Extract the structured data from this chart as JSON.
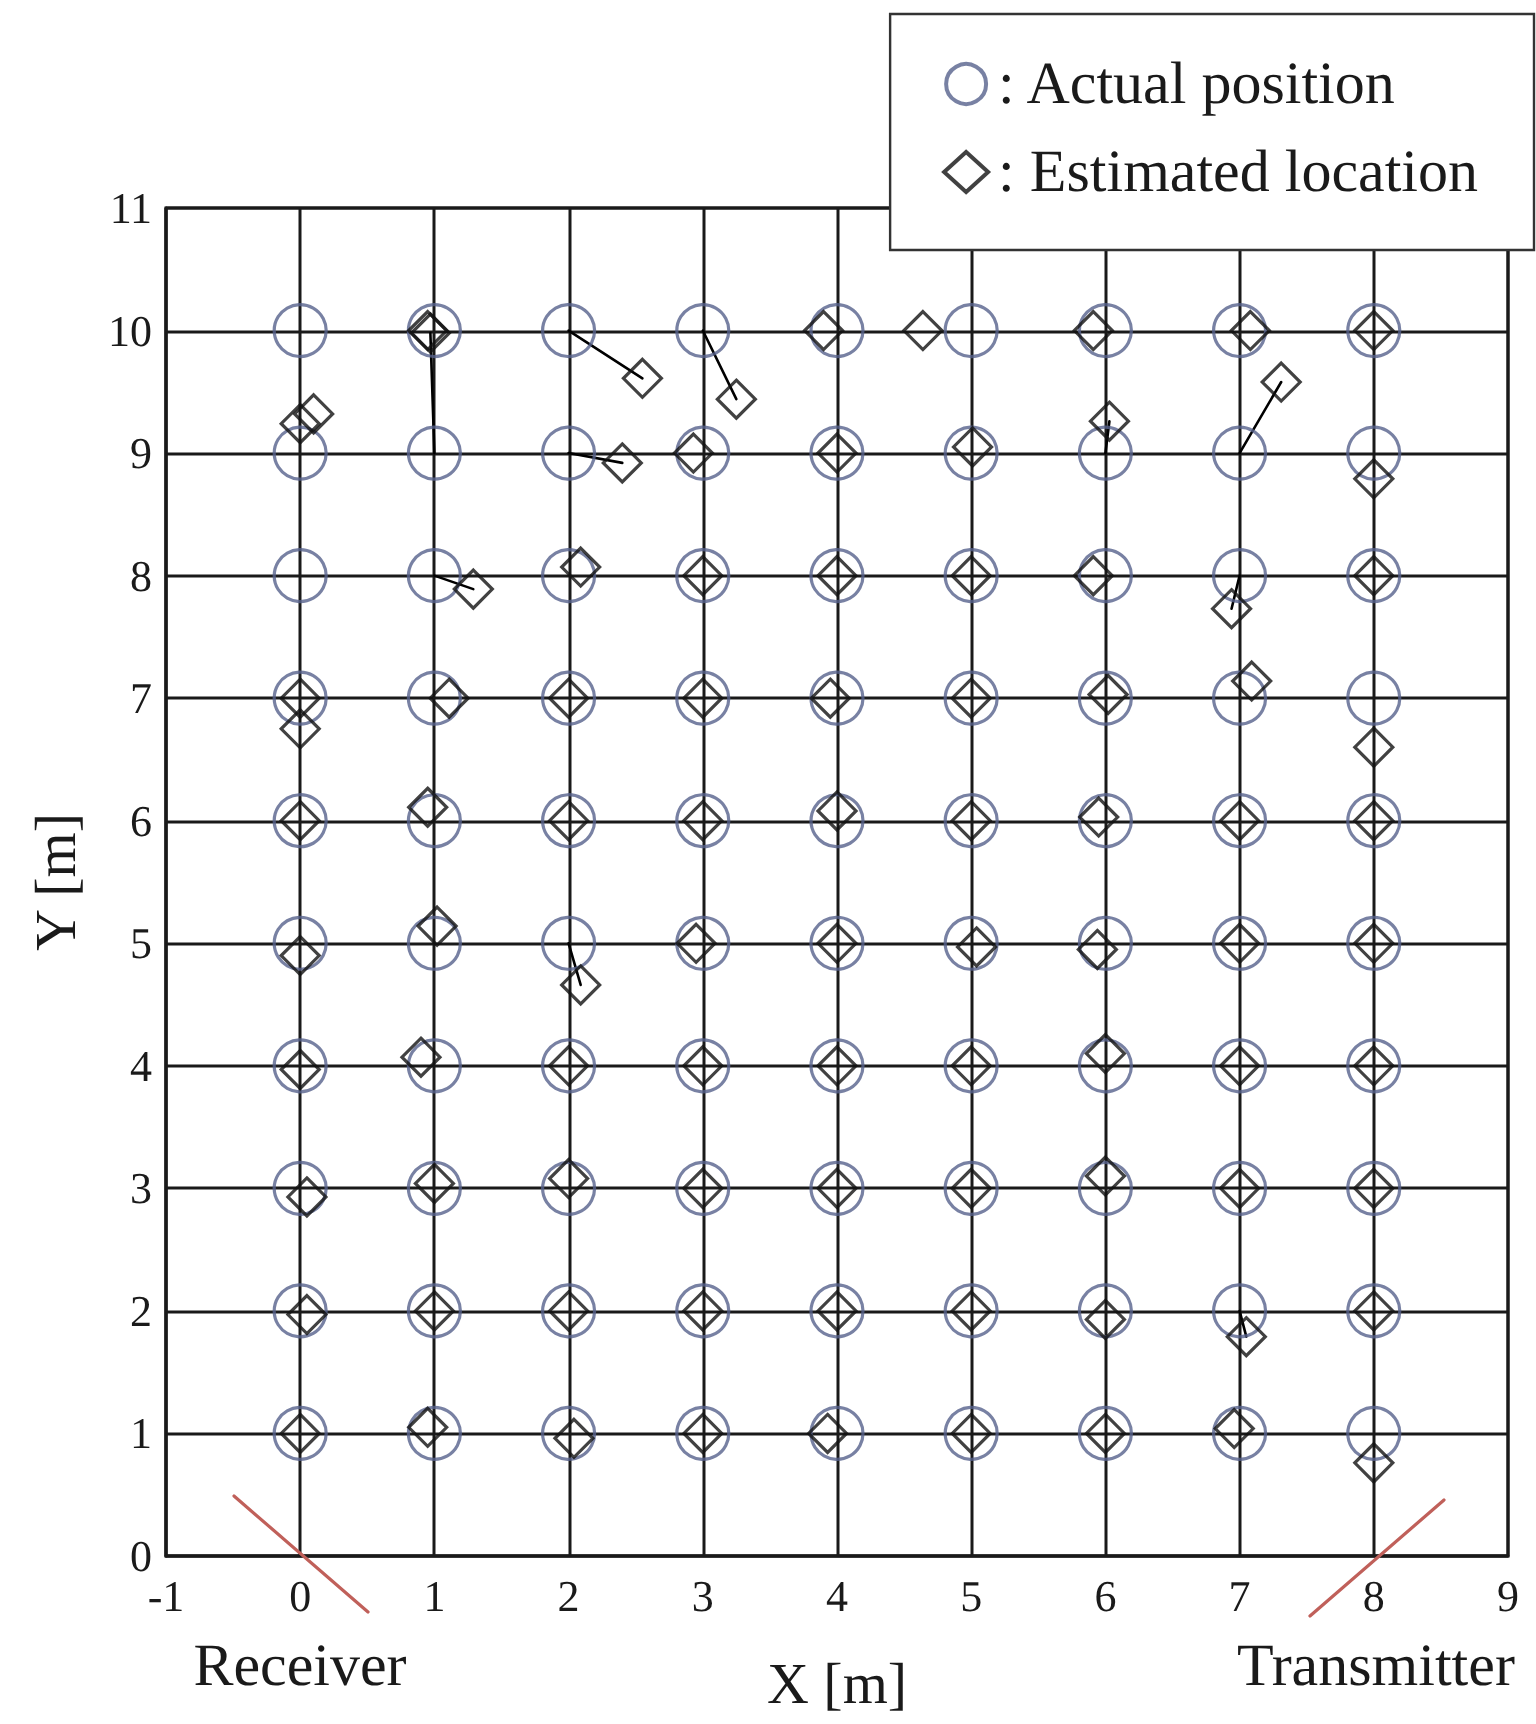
{
  "chart_data": {
    "type": "scatter",
    "xlabel": "X [m]",
    "ylabel": "Y [m]",
    "xlim": [
      -1,
      9
    ],
    "ylim": [
      0,
      11
    ],
    "xticks": [
      -1,
      0,
      1,
      2,
      3,
      4,
      5,
      6,
      7,
      8,
      9
    ],
    "yticks": [
      0,
      1,
      2,
      3,
      4,
      5,
      6,
      7,
      8,
      9,
      10,
      11
    ],
    "grid": true,
    "legend": "top right",
    "annotations": [
      "Receiver",
      "Transmitter"
    ],
    "series": [
      {
        "type": "line",
        "color": "#000000",
        "marker": "none",
        "line_style": "solid",
        "x": [
          1,
          0.97
        ],
        "values": [
          9,
          9.98
        ]
      },
      {
        "type": "scatter",
        "name": ": Actual position",
        "color": "#56618c",
        "marker": "circle",
        "x": [
          0,
          0,
          0,
          0,
          0,
          0,
          0,
          0,
          0,
          0,
          1,
          1,
          1,
          1,
          1,
          1,
          1,
          1,
          1,
          1,
          2,
          2,
          2,
          2,
          2,
          2,
          2,
          2,
          2,
          2,
          3,
          3,
          3,
          3,
          3,
          3,
          3,
          3,
          3,
          3,
          4,
          4,
          4,
          4,
          4,
          4,
          4,
          4,
          4,
          4,
          5,
          5,
          5,
          5,
          5,
          5,
          5,
          5,
          5,
          5,
          6,
          6,
          6,
          6,
          6,
          6,
          6,
          6,
          6,
          6,
          7,
          7,
          7,
          7,
          7,
          7,
          7,
          7,
          7,
          7,
          8,
          8,
          8,
          8,
          8,
          8,
          8,
          8,
          8,
          8
        ],
        "values": [
          10,
          9,
          8,
          7,
          6,
          5,
          4,
          3,
          2,
          1,
          10,
          9,
          8,
          7,
          6,
          5,
          4,
          3,
          2,
          1,
          10,
          9,
          8,
          7,
          6,
          5,
          4,
          3,
          2,
          1,
          10,
          9,
          8,
          7,
          6,
          5,
          4,
          3,
          2,
          1,
          10,
          9,
          8,
          7,
          6,
          5,
          4,
          3,
          2,
          1,
          10,
          9,
          8,
          7,
          6,
          5,
          4,
          3,
          2,
          1,
          10,
          9,
          8,
          7,
          6,
          5,
          4,
          3,
          2,
          1,
          10,
          9,
          8,
          7,
          6,
          5,
          4,
          3,
          2,
          1,
          10,
          9,
          8,
          7,
          6,
          5,
          4,
          3,
          2,
          1
        ]
      },
      {
        "type": "scatter",
        "name": ": Estimated location",
        "color": "#111111",
        "marker": "diamond",
        "x": [
          0.1,
          0,
          0,
          0,
          0,
          0,
          0,
          0.05,
          0.05,
          0,
          0.95,
          0.97,
          1.29,
          1.11,
          0.95,
          1.02,
          0.9,
          1,
          1,
          0.95,
          2.55,
          2.4,
          2.09,
          2,
          2,
          2.09,
          2,
          2,
          2,
          2.04,
          3.25,
          2.93,
          3,
          3,
          3,
          2.95,
          3,
          3,
          3,
          3,
          3.9,
          4,
          4,
          3.95,
          4,
          4,
          4,
          4,
          4,
          3.93,
          4.64,
          5.01,
          5,
          5,
          5,
          5.04,
          5,
          5,
          5,
          5,
          5.91,
          6.03,
          5.91,
          6.02,
          5.95,
          5.94,
          6,
          6,
          6,
          6,
          7.08,
          7.31,
          6.94,
          7.09,
          7,
          7,
          7,
          7,
          7.05,
          6.96,
          8,
          8,
          8,
          8,
          8,
          8,
          8,
          8,
          8,
          8
        ],
        "values": [
          9.32,
          9.24,
          7,
          6.75,
          6,
          4.9,
          3.97,
          2.93,
          1.97,
          1,
          10,
          9.98,
          7.89,
          7,
          6.11,
          5.14,
          4.07,
          3.04,
          2,
          1.05,
          9.61,
          8.92,
          8.07,
          7,
          6,
          4.66,
          4,
          3.08,
          2,
          0.96,
          9.44,
          9,
          8,
          7,
          6,
          5,
          4,
          3,
          2,
          1,
          10,
          9,
          8,
          7,
          6.08,
          5,
          4,
          3,
          2,
          1,
          10,
          9.05,
          8,
          7,
          6,
          4.97,
          4,
          3,
          2,
          1,
          10,
          9.26,
          8,
          7.03,
          6.03,
          4.95,
          4.1,
          3.1,
          1.93,
          1,
          10,
          9.58,
          7.73,
          7.14,
          6,
          5,
          4,
          3,
          1.79,
          1.04,
          10,
          8.79,
          8,
          6.6,
          6,
          5,
          4,
          3,
          2,
          0.76
        ]
      },
      {
        "type": "line",
        "color": "#000000",
        "marker": "none",
        "line_style": "solid",
        "x": [
          1,
          1.29
        ],
        "values": [
          8,
          7.89
        ]
      },
      {
        "type": "line",
        "color": "#000000",
        "marker": "none",
        "line_style": "solid",
        "x": [
          2,
          2.55
        ],
        "values": [
          10,
          9.61
        ]
      },
      {
        "type": "line",
        "color": "#000000",
        "marker": "none",
        "line_style": "solid",
        "x": [
          2,
          2.4
        ],
        "values": [
          9,
          8.92
        ]
      },
      {
        "type": "line",
        "color": "#000000",
        "marker": "none",
        "line_style": "solid",
        "x": [
          2,
          2.09
        ],
        "values": [
          5,
          4.66
        ]
      },
      {
        "type": "line",
        "color": "#000000",
        "marker": "none",
        "line_style": "solid",
        "x": [
          3,
          3.25
        ],
        "values": [
          10,
          9.44
        ]
      },
      {
        "type": "line",
        "color": "#000000",
        "marker": "none",
        "line_style": "solid",
        "x": [
          6,
          6.03
        ],
        "values": [
          9,
          9.26
        ]
      },
      {
        "type": "line",
        "color": "#000000",
        "marker": "none",
        "line_style": "solid",
        "x": [
          7,
          7.31
        ],
        "values": [
          9,
          9.58
        ]
      },
      {
        "type": "line",
        "color": "#000000",
        "marker": "none",
        "line_style": "solid",
        "x": [
          7,
          6.94
        ],
        "values": [
          8,
          7.73
        ]
      },
      {
        "type": "line",
        "color": "#000000",
        "marker": "none",
        "line_style": "solid",
        "x": [
          7,
          7.05
        ],
        "values": [
          2,
          1.79
        ]
      }
    ]
  }
}
